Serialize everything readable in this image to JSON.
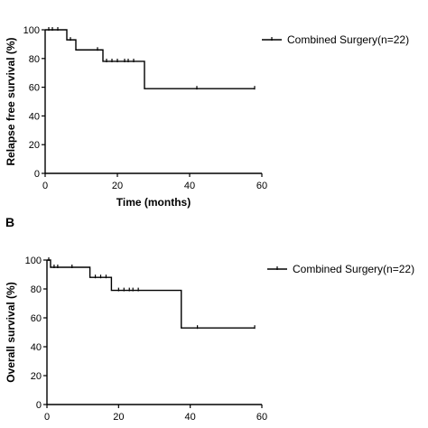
{
  "panel_b_label": "B",
  "chart_data": [
    {
      "type": "line",
      "subtype": "kaplan-meier",
      "title": "",
      "xlabel": "Time (months)",
      "ylabel": "Relapse free survival (%)",
      "xlim": [
        0,
        60
      ],
      "ylim": [
        0,
        100
      ],
      "xticks": [
        0,
        20,
        40,
        60
      ],
      "yticks": [
        0,
        20,
        40,
        60,
        80,
        100
      ],
      "legend": "right",
      "series": [
        {
          "name": "Combined Surgery(n=22)",
          "steps": [
            [
              0,
              100
            ],
            [
              6,
              93
            ],
            [
              8.5,
              86
            ],
            [
              16,
              78
            ],
            [
              27.5,
              59
            ],
            [
              58,
              59
            ]
          ],
          "censored": [
            [
              1,
              100
            ],
            [
              2,
              100
            ],
            [
              3.5,
              100
            ],
            [
              7,
              93
            ],
            [
              14.5,
              86
            ],
            [
              17,
              78
            ],
            [
              18.5,
              78
            ],
            [
              20,
              78
            ],
            [
              22,
              78
            ],
            [
              23,
              78
            ],
            [
              24.5,
              78
            ],
            [
              42,
              59
            ],
            [
              58,
              59
            ]
          ]
        }
      ]
    },
    {
      "type": "line",
      "subtype": "kaplan-meier",
      "title": "",
      "xlabel": "",
      "ylabel": "Overall survival (%)",
      "xlim": [
        0,
        60
      ],
      "ylim": [
        0,
        100
      ],
      "xticks": [
        0,
        20,
        40,
        60
      ],
      "yticks": [
        0,
        20,
        40,
        60,
        80,
        100
      ],
      "legend": "right",
      "series": [
        {
          "name": "Combined Surgery(n=22)",
          "steps": [
            [
              0,
              100
            ],
            [
              1,
              95
            ],
            [
              12,
              88
            ],
            [
              18,
              79
            ],
            [
              37.5,
              53
            ],
            [
              58,
              53
            ]
          ],
          "censored": [
            [
              0.5,
              100
            ],
            [
              2,
              95
            ],
            [
              3,
              95
            ],
            [
              7,
              95
            ],
            [
              13.5,
              88
            ],
            [
              15,
              88
            ],
            [
              16.5,
              88
            ],
            [
              20,
              79
            ],
            [
              21.5,
              79
            ],
            [
              23,
              79
            ],
            [
              24,
              79
            ],
            [
              25.5,
              79
            ],
            [
              42,
              53
            ],
            [
              58,
              53
            ]
          ]
        }
      ]
    }
  ]
}
